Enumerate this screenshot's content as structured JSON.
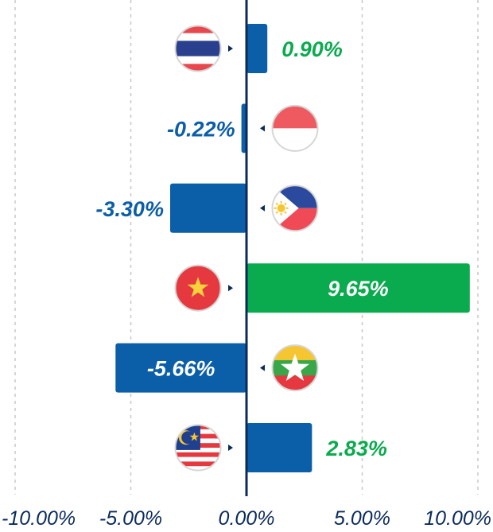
{
  "chart_data": {
    "type": "bar",
    "orientation": "horizontal",
    "categories": [
      "Thailand",
      "Indonesia",
      "Philippines",
      "Vietnam",
      "Myanmar",
      "Malaysia"
    ],
    "flag_icons": [
      "thailand-flag-icon",
      "indonesia-flag-icon",
      "philippines-flag-icon",
      "vietnam-flag-icon",
      "myanmar-flag-icon",
      "malaysia-flag-icon"
    ],
    "values": [
      0.9,
      -0.22,
      -3.3,
      9.65,
      -5.66,
      2.83
    ],
    "value_labels": [
      "0.90%",
      "-0.22%",
      "-3.30%",
      "9.65%",
      "-5.66%",
      "2.83%"
    ],
    "xlim": [
      -10,
      10
    ],
    "xticks": [
      -10,
      -5,
      0,
      5,
      10
    ],
    "xtick_labels": [
      "-10.00%",
      "-5.00%",
      "0.00%",
      "5.00%",
      "10.00%"
    ],
    "grid": "vertical-dashed",
    "title": "",
    "xlabel": "",
    "ylabel": "",
    "colors": {
      "negative": "#0b5ea8",
      "highlight": "#0aab4e",
      "positive_label": "#0aab4e",
      "axis": "#0a2a5c",
      "grid": "#c8c8c8"
    }
  }
}
